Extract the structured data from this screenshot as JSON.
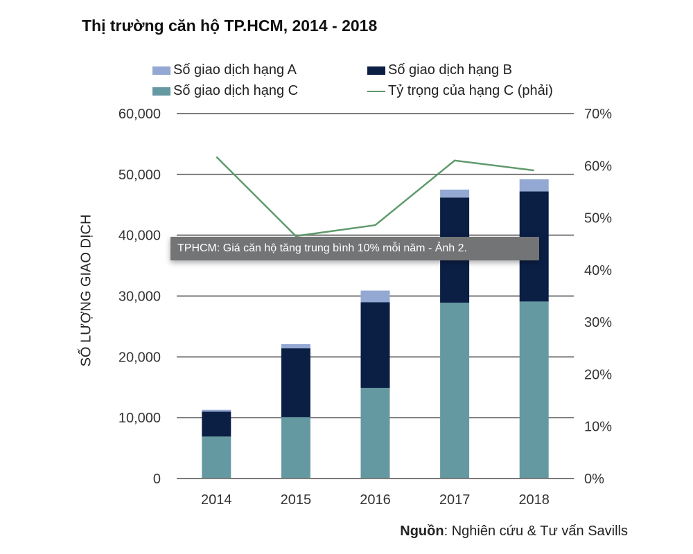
{
  "chart_data": {
    "type": "bar",
    "stacked": true,
    "title": "Thị trường căn hộ TP.HCM, 2014 - 2018",
    "ylabel": "SỐ LƯỢNG GIAO DỊCH",
    "xlabel": "",
    "categories": [
      "2014",
      "2015",
      "2016",
      "2017",
      "2018"
    ],
    "ylim": [
      0,
      60000
    ],
    "y_ticks": [
      "0",
      "10,000",
      "20,000",
      "30,000",
      "40,000",
      "50,000",
      "60,000"
    ],
    "y2lim": [
      0,
      70
    ],
    "y2_ticks": [
      "0%",
      "10%",
      "20%",
      "30%",
      "40%",
      "50%",
      "60%",
      "70%"
    ],
    "grid": true,
    "legend_placement": "top",
    "series": [
      {
        "name": "Số giao dịch hạng C",
        "type": "bar",
        "color": "#6599a1",
        "values": [
          6900,
          10100,
          14900,
          28900,
          29100
        ]
      },
      {
        "name": "Số giao dịch hạng B",
        "type": "bar",
        "color": "#0b1f45",
        "values": [
          4100,
          11300,
          14100,
          17300,
          18100
        ]
      },
      {
        "name": "Số giao dịch hạng A",
        "type": "bar",
        "color": "#93a8d2",
        "values": [
          300,
          700,
          1900,
          1300,
          2000
        ]
      },
      {
        "name": "Tỷ trọng của hạng C (phải)",
        "type": "line",
        "axis": "right",
        "color": "#5f9a6c",
        "values": [
          61.7,
          46.5,
          48.6,
          61.0,
          59.1
        ]
      }
    ],
    "legend_order": [
      "Số giao dịch hạng A",
      "Số giao dịch hạng B",
      "Số giao dịch hạng C",
      "Tỷ trọng của hạng C (phải)"
    ]
  },
  "tooltip": {
    "text": "TPHCM: Giá căn hộ tăng trung bình 10% mỗi năm - Ảnh 2."
  },
  "source": {
    "label": "Nguồn",
    "text": ": Nghiên cứu & Tư vấn Savills"
  }
}
